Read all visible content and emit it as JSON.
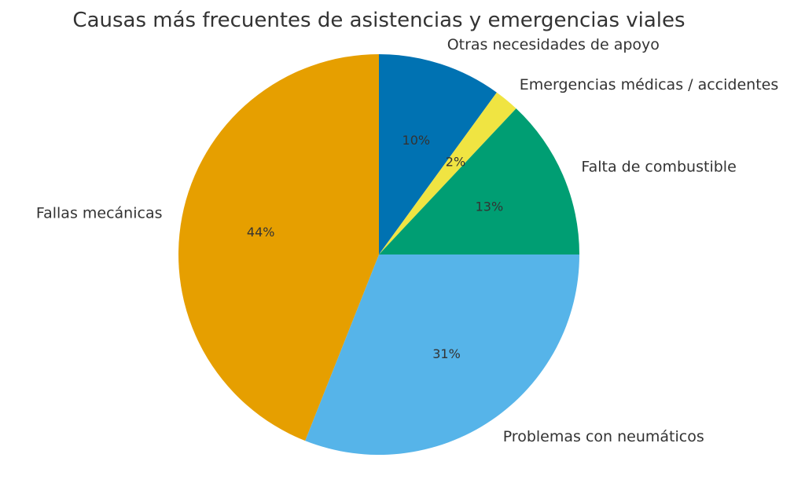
{
  "chart_data": {
    "type": "pie",
    "title": "Causas más frecuentes de asistencias y emergencias viales",
    "start_angle": "12 o'clock",
    "direction": "clockwise",
    "slices": [
      {
        "label": "Otras necesidades de apoyo",
        "value": 10,
        "pct_label": "10%",
        "color": "#0072B2"
      },
      {
        "label": "Emergencias médicas / accidentes",
        "value": 2,
        "pct_label": "2%",
        "color": "#F0E442"
      },
      {
        "label": "Falta de combustible",
        "value": 13,
        "pct_label": "13%",
        "color": "#009E73"
      },
      {
        "label": "Problemas con neumáticos",
        "value": 31,
        "pct_label": "31%",
        "color": "#56B4E9"
      },
      {
        "label": "Fallas mecánicas",
        "value": 44,
        "pct_label": "44%",
        "color": "#E69F00"
      }
    ],
    "text_color": "#333333"
  }
}
